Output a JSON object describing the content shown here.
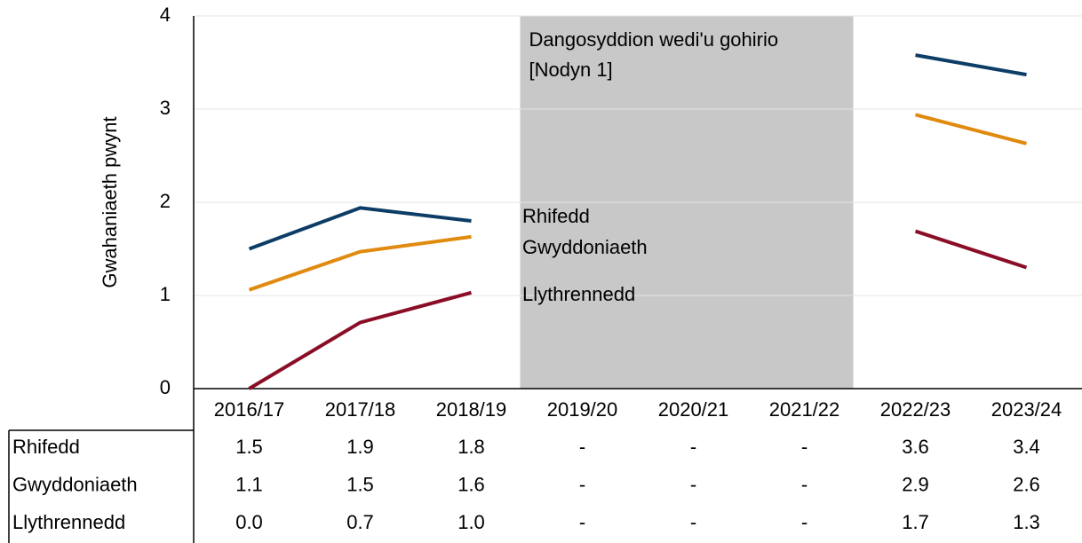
{
  "chart_data": {
    "type": "line",
    "y_label": "Gwahaniaeth pwynt",
    "categories": [
      "2016/17",
      "2017/18",
      "2018/19",
      "2019/20",
      "2020/21",
      "2021/22",
      "2022/23",
      "2023/24"
    ],
    "series": [
      {
        "name": "Rhifedd",
        "color": "#0d3d66",
        "values": [
          1.5,
          1.94,
          1.8,
          null,
          null,
          null,
          3.58,
          3.37
        ],
        "value_labels": [
          "1.5",
          "1.9",
          "1.8",
          "-",
          "-",
          "-",
          "3.6",
          "3.4"
        ]
      },
      {
        "name": "Gwyddoniaeth",
        "color": "#e08a0f",
        "values": [
          1.06,
          1.47,
          1.63,
          null,
          null,
          null,
          2.94,
          2.63
        ],
        "value_labels": [
          "1.1",
          "1.5",
          "1.6",
          "-",
          "-",
          "-",
          "2.9",
          "2.6"
        ]
      },
      {
        "name": "Llythrennedd",
        "color": "#8a0d26",
        "values": [
          0,
          0.71,
          1.03,
          null,
          null,
          null,
          1.69,
          1.3
        ],
        "value_labels": [
          "0.0",
          "0.7",
          "1.0",
          "-",
          "-",
          "-",
          "1.7",
          "1.3"
        ]
      }
    ],
    "shaded_region": {
      "from": 3,
      "to": 5,
      "color": "#c8c8c8",
      "label": [
        "Dangosyddion wedi'u gohirio",
        "[Nodyn 1]"
      ]
    },
    "ylim": [
      0,
      4
    ],
    "yticks": [
      0,
      1,
      2,
      3,
      4
    ],
    "grid": true
  }
}
